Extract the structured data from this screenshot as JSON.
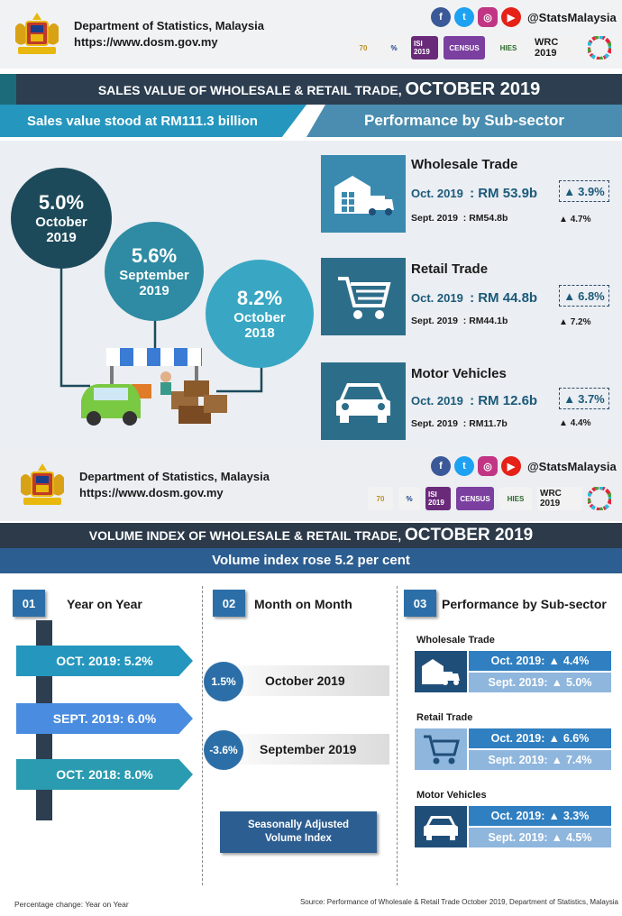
{
  "header": {
    "dept_name": "Department of Statistics, Malaysia",
    "url": "https://www.dosm.gov.my",
    "social_handle": "@StatsMalaysia",
    "social_icons": [
      "facebook-icon",
      "twitter-icon",
      "instagram-icon",
      "youtube-icon"
    ],
    "logo_texts": [
      "70",
      "%",
      "ISI 2019",
      "CENSUS",
      "HIES",
      "WRC 2019",
      "SDG"
    ]
  },
  "sales": {
    "title_prefix": "SALES VALUE OF WHOLESALE & RETAIL TRADE, ",
    "title_suffix": "OCTOBER 2019",
    "subtitle": "Sales value stood at RM111.3 billion",
    "perf_title": "Performance by Sub-sector",
    "circles": [
      {
        "pct": "5.0%",
        "line1": "October",
        "line2": "2019"
      },
      {
        "pct": "5.6%",
        "line1": "September",
        "line2": "2019"
      },
      {
        "pct": "8.2%",
        "line1": "October",
        "line2": "2018"
      }
    ],
    "sectors": [
      {
        "name": "Wholesale Trade",
        "oct_label": "Oct. 2019",
        "oct_value": ": RM 53.9b",
        "oct_pct": "3.9%",
        "sept_label": "Sept. 2019",
        "sept_value": ": RM54.8b",
        "sept_pct": "4.7%"
      },
      {
        "name": "Retail Trade",
        "oct_label": "Oct. 2019",
        "oct_value": ": RM 44.8b",
        "oct_pct": "6.8%",
        "sept_label": "Sept. 2019",
        "sept_value": ": RM44.1b",
        "sept_pct": "7.2%"
      },
      {
        "name": "Motor Vehicles",
        "oct_label": "Oct. 2019",
        "oct_value": ": RM 12.6b",
        "oct_pct": "3.7%",
        "sept_label": "Sept. 2019",
        "sept_value": ": RM11.7b",
        "sept_pct": "4.4%"
      }
    ]
  },
  "volume": {
    "title_prefix": "VOLUME INDEX OF WHOLESALE & RETAIL TRADE, ",
    "title_suffix": "OCTOBER 2019",
    "subtitle": "Volume index rose 5.2 per cent",
    "yoy": {
      "num": "01",
      "title": "Year on Year",
      "ribbons": [
        "OCT.  2019: 5.2%",
        "SEPT. 2019: 6.0%",
        "OCT.  2018: 8.0%"
      ]
    },
    "mom": {
      "num": "02",
      "title": "Month on Month",
      "items": [
        {
          "pct": "1.5%",
          "label": "October 2019"
        },
        {
          "pct": "-3.6%",
          "label": "September 2019"
        }
      ],
      "sa_line1": "Seasonally Adjusted",
      "sa_line2": "Volume Index"
    },
    "perf": {
      "num": "03",
      "title": "Performance by Sub-sector",
      "items": [
        {
          "name": "Wholesale Trade",
          "oct_label": "Oct. 2019:",
          "oct_pct": "4.4%",
          "sept_label": "Sept. 2019:",
          "sept_pct": "5.0%"
        },
        {
          "name": "Retail Trade",
          "oct_label": "Oct. 2019:",
          "oct_pct": "6.6%",
          "sept_label": "Sept. 2019:",
          "sept_pct": "7.4%"
        },
        {
          "name": "Motor Vehicles",
          "oct_label": "Oct. 2019:",
          "oct_pct": "3.3%",
          "sept_label": "Sept. 2019:",
          "sept_pct": "4.5%"
        }
      ]
    }
  },
  "footer": {
    "note": "Percentage change: Year on Year",
    "source": "Source: Performance of Wholesale & Retail Trade October 2019, Department of Statistics, Malaysia"
  },
  "colors": {
    "navy": "#2c3e50",
    "teal": "#1c6b7a",
    "accent_blue": "#2596be"
  }
}
